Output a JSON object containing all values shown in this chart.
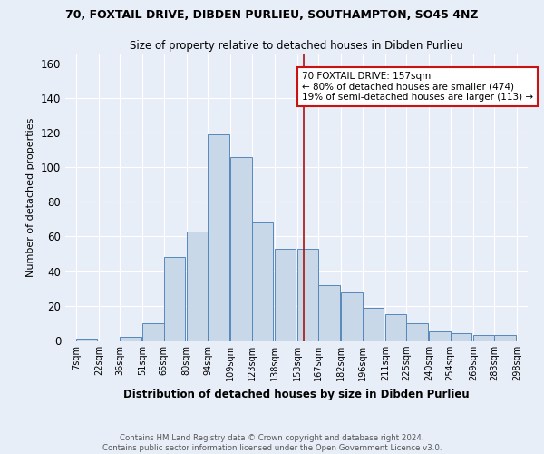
{
  "title": "70, FOXTAIL DRIVE, DIBDEN PURLIEU, SOUTHAMPTON, SO45 4NZ",
  "subtitle": "Size of property relative to detached houses in Dibden Purlieu",
  "xlabel": "Distribution of detached houses by size in Dibden Purlieu",
  "ylabel": "Number of detached properties",
  "footer_line1": "Contains HM Land Registry data © Crown copyright and database right 2024.",
  "footer_line2": "Contains public sector information licensed under the Open Government Licence v3.0.",
  "annotation_title": "70 FOXTAIL DRIVE: 157sqm",
  "annotation_line2": "← 80% of detached houses are smaller (474)",
  "annotation_line3": "19% of semi-detached houses are larger (113) →",
  "bar_color": "#c8d8e8",
  "bar_edge_color": "#5588bb",
  "vline_x": 157,
  "vline_color": "#aa1111",
  "background_color": "#e8eef8",
  "bins_left": [
    7,
    22,
    36,
    51,
    65,
    80,
    94,
    109,
    123,
    138,
    153,
    167,
    182,
    196,
    211,
    225,
    240,
    254,
    269,
    283
  ],
  "bin_width": 14,
  "bin_heights": [
    1,
    0,
    2,
    10,
    48,
    63,
    119,
    106,
    68,
    53,
    53,
    32,
    28,
    19,
    15,
    10,
    5,
    4,
    3,
    3
  ],
  "tick_labels": [
    "7sqm",
    "22sqm",
    "36sqm",
    "51sqm",
    "65sqm",
    "80sqm",
    "94sqm",
    "109sqm",
    "123sqm",
    "138sqm",
    "153sqm",
    "167sqm",
    "182sqm",
    "196sqm",
    "211sqm",
    "225sqm",
    "240sqm",
    "254sqm",
    "269sqm",
    "283sqm",
    "298sqm"
  ],
  "tick_positions": [
    7,
    22,
    36,
    51,
    65,
    80,
    94,
    109,
    123,
    138,
    153,
    167,
    182,
    196,
    211,
    225,
    240,
    254,
    269,
    283,
    298
  ],
  "ylim": [
    0,
    165
  ],
  "yticks": [
    0,
    20,
    40,
    60,
    80,
    100,
    120,
    140,
    160
  ]
}
